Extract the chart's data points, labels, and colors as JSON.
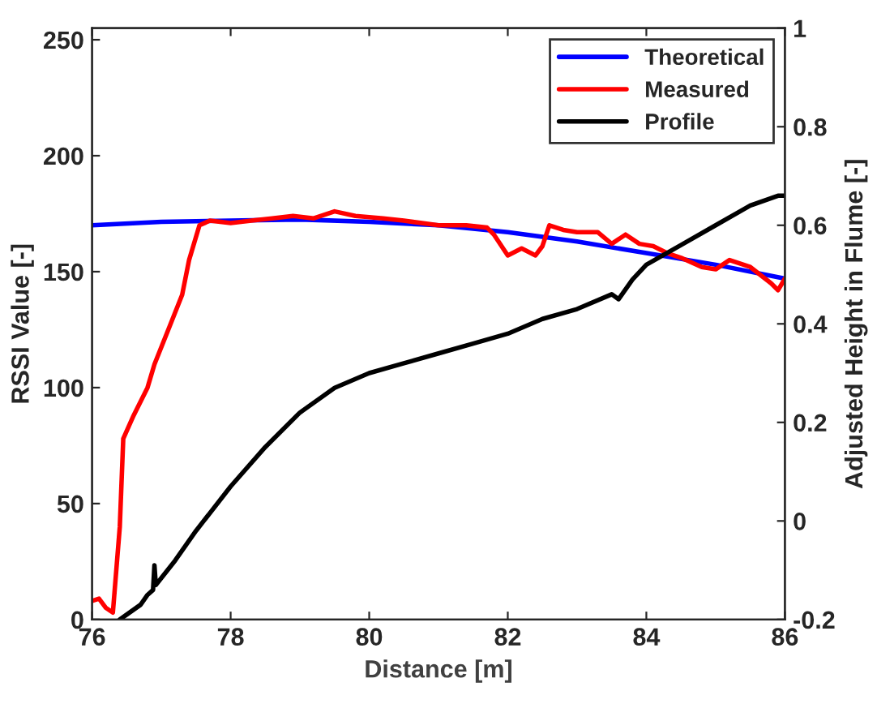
{
  "chart_data": {
    "type": "line",
    "xlabel": "Distance [m]",
    "ylabel": "RSSI Value [-]",
    "y2label": "Adjusted Height in Flume [-]",
    "xlim": [
      76,
      86
    ],
    "xticks": [
      76,
      78,
      80,
      82,
      84,
      86
    ],
    "ylim": [
      0,
      255
    ],
    "yticks": [
      0,
      50,
      100,
      150,
      200,
      250
    ],
    "y2lim": [
      -0.2,
      1
    ],
    "y2ticks": [
      -0.2,
      0,
      0.2,
      0.4,
      0.6,
      0.8,
      1
    ],
    "legend": "top right",
    "grid": false,
    "series": [
      {
        "name": "Theoretical",
        "color": "#0000ff",
        "x": [
          76,
          77,
          78,
          79,
          80,
          81,
          82,
          83,
          84,
          85,
          86
        ],
        "values": [
          170,
          171.5,
          172,
          172.5,
          171.5,
          170,
          167,
          163,
          158,
          153,
          147
        ]
      },
      {
        "name": "Measured",
        "color": "#ff0000",
        "x": [
          76,
          76.1,
          76.2,
          76.3,
          76.4,
          76.45,
          76.6,
          76.8,
          76.9,
          77.1,
          77.3,
          77.4,
          77.55,
          77.7,
          78,
          78.3,
          78.6,
          78.9,
          79.2,
          79.5,
          79.8,
          80.2,
          80.5,
          81,
          81.4,
          81.7,
          81.8,
          82,
          82.2,
          82.4,
          82.5,
          82.6,
          82.8,
          83,
          83.3,
          83.5,
          83.7,
          83.9,
          84.1,
          84.3,
          84.5,
          84.8,
          85,
          85.2,
          85.5,
          85.8,
          85.9,
          86
        ],
        "values": [
          8,
          9,
          5,
          3,
          40,
          78,
          88,
          100,
          110,
          125,
          140,
          155,
          170,
          172,
          171,
          172,
          173,
          174,
          173,
          176,
          174,
          173,
          172,
          170,
          170,
          169,
          166,
          157,
          160,
          157,
          161,
          170,
          168,
          167,
          167,
          162,
          166,
          162,
          161,
          158,
          156,
          152,
          151,
          155,
          152,
          145,
          142,
          147
        ]
      },
      {
        "name": "Profile",
        "color": "#000000",
        "axis": "y2",
        "x": [
          76.4,
          76.7,
          76.8,
          76.88,
          76.9,
          76.92,
          77.2,
          77.5,
          78,
          78.5,
          79,
          79.5,
          80,
          80.5,
          81,
          81.5,
          82,
          82.5,
          83,
          83.5,
          83.6,
          83.8,
          84,
          84.5,
          85,
          85.5,
          85.9,
          86
        ],
        "values": [
          -0.2,
          -0.17,
          -0.15,
          -0.14,
          -0.09,
          -0.13,
          -0.08,
          -0.02,
          0.07,
          0.15,
          0.22,
          0.27,
          0.3,
          0.32,
          0.34,
          0.36,
          0.38,
          0.41,
          0.43,
          0.46,
          0.45,
          0.49,
          0.52,
          0.56,
          0.6,
          0.64,
          0.66,
          0.66
        ]
      }
    ]
  }
}
